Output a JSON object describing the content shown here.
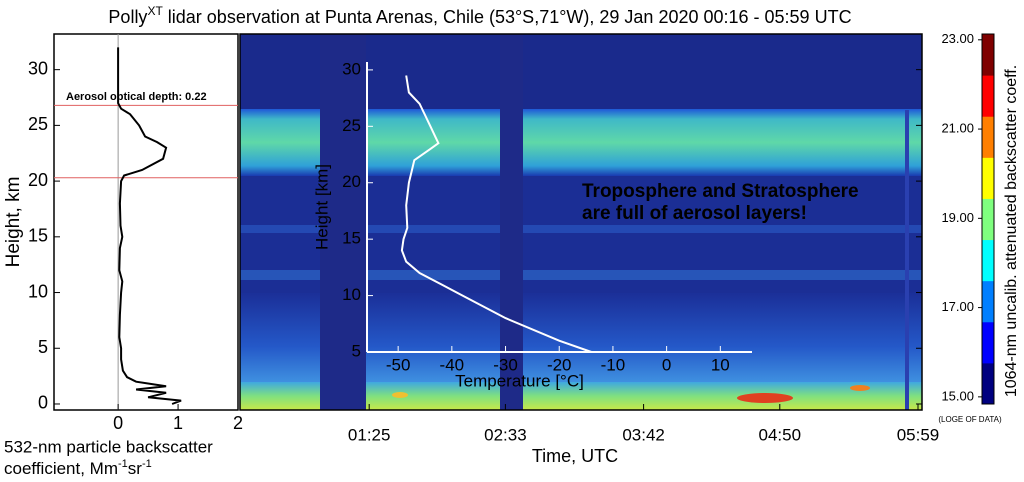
{
  "chart_data": [
    {
      "type": "profile",
      "title": {
        "main": "Polly",
        "superscript": "XT",
        "rest": " lidar observation at Punta Arenas, Chile (53°S,71°W),  29 Jan 2020 00:16 - 05:59 UTC"
      },
      "ylabel": "Height, km",
      "xlabel": {
        "line1": "532-nm particle backscatter",
        "line2": [
          "coefficient, Mm",
          "-1",
          "sr",
          "-1"
        ]
      },
      "xlim": [
        -1.07,
        2
      ],
      "xticks": [
        0,
        1,
        2
      ],
      "ylim": [
        -0.54,
        33.2
      ],
      "yticks": [
        0,
        5,
        10,
        15,
        20,
        25,
        30
      ],
      "heights": [
        0,
        0.3,
        0.6,
        1,
        1.3,
        1.6,
        2,
        2.4,
        3,
        4,
        5,
        6,
        8,
        10,
        11,
        12,
        14,
        15,
        16,
        18,
        20,
        20.5,
        21,
        22,
        23,
        23.5,
        24,
        25,
        26,
        26.5,
        27,
        28,
        30,
        32
      ],
      "values": [
        0.9,
        1.05,
        0.5,
        0.8,
        0.3,
        0.8,
        0.3,
        0.15,
        0.08,
        0.05,
        0.05,
        0.02,
        0.03,
        0.05,
        0.07,
        0.02,
        0.03,
        0.07,
        0.04,
        0.03,
        0.05,
        0.1,
        0.4,
        0.75,
        0.8,
        0.65,
        0.45,
        0.35,
        0.2,
        0.05,
        0,
        0,
        0,
        0
      ],
      "color": "#000000",
      "hlines": [
        26.8,
        20.3
      ],
      "hline_color": "#e06060",
      "annotation": "Aerosol optical depth: 0.22"
    },
    {
      "type": "heatmap",
      "xlabel": "Time, UTC",
      "xlim": [
        20.5,
        361
      ],
      "xticks": [
        {
          "value": 85,
          "label": "01:25"
        },
        {
          "value": 153,
          "label": "02:33"
        },
        {
          "value": 222,
          "label": "03:42"
        },
        {
          "value": 290,
          "label": "04:50"
        },
        {
          "value": 359,
          "label": "05:59"
        }
      ],
      "ylim": [
        -0.54,
        33.2
      ],
      "yticks": [
        0,
        5,
        10,
        15,
        20,
        25,
        30
      ],
      "annotation": [
        "Troposphere and Stratosphere",
        "are full of aerosol layers!"
      ]
    },
    {
      "type": "profile",
      "xlabel": "Temperature [°C]",
      "ylabel": "Height [km]",
      "xlim": [
        -55.8,
        15.9
      ],
      "xticks": [
        -50,
        -40,
        -30,
        -20,
        -10,
        0,
        10
      ],
      "ylim": [
        5,
        30.7
      ],
      "yticks": [
        5,
        10,
        15,
        20,
        25,
        30
      ],
      "heights": [
        29.5,
        28,
        27,
        26,
        25,
        24,
        23.5,
        23,
        22,
        21,
        20,
        18,
        16,
        15,
        14,
        13,
        12,
        11,
        10,
        8,
        6,
        5
      ],
      "values": [
        -48.5,
        -48,
        -46,
        -45,
        -44,
        -43,
        -42.5,
        -44,
        -47,
        -47.5,
        -48,
        -48.5,
        -48.3,
        -49,
        -49.3,
        -48.5,
        -46,
        -42,
        -38,
        -30,
        -20,
        -14
      ],
      "color": "#ffffff"
    },
    {
      "type": "colorbar",
      "label": "1064-nm uncalib. attenuated backscatter coeff.",
      "note": "(LOGE OF DATA)",
      "ylim": [
        14.84,
        23.13
      ],
      "yticks": [
        {
          "value": 15,
          "label": "15.00"
        },
        {
          "value": 17,
          "label": "17.00"
        },
        {
          "value": 19,
          "label": "19.00"
        },
        {
          "value": 21,
          "label": "21.00"
        },
        {
          "value": 23,
          "label": "23.00"
        }
      ],
      "colors": [
        "#00007f",
        "#0000ff",
        "#007fff",
        "#00ffff",
        "#7fff7f",
        "#ffff00",
        "#ff7f00",
        "#ff0000",
        "#7f0000"
      ]
    }
  ]
}
